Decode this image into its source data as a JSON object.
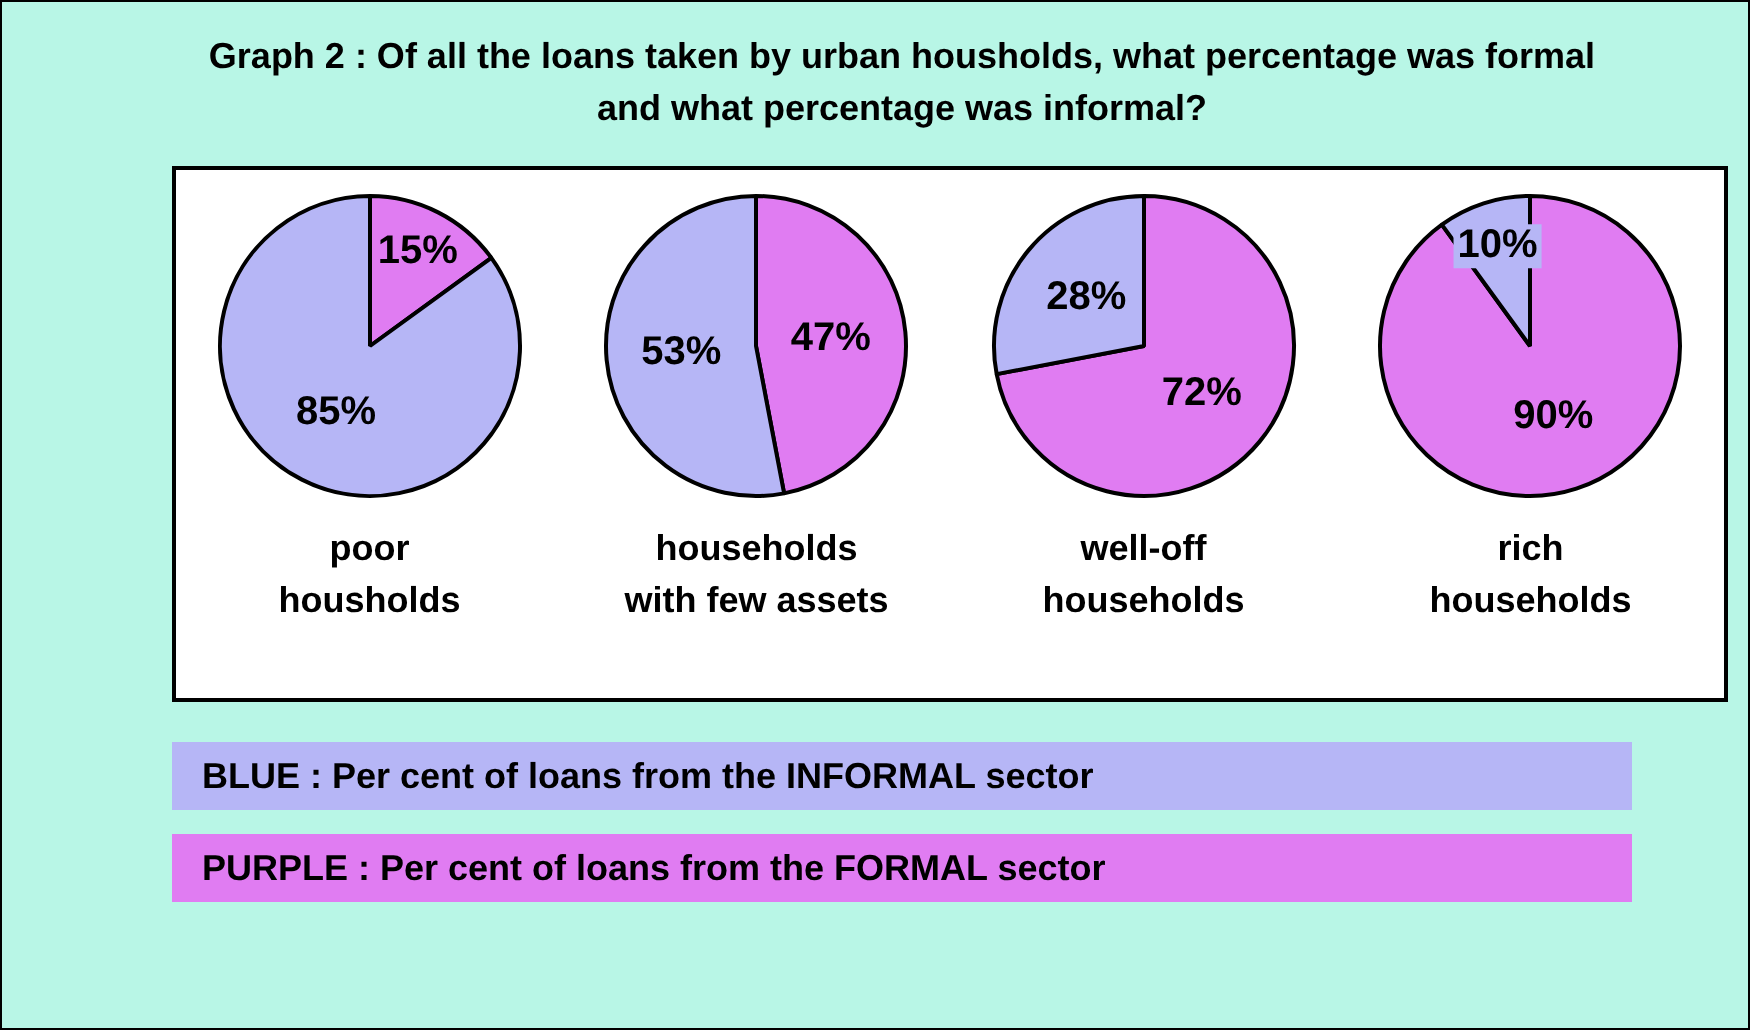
{
  "chart_data": [
    {
      "type": "other",
      "title": "Graph 2 : Of all the loans taken by urban housholds, what percentage was formal and what percentage was informal?",
      "annotations": [
        "BLUE : Per cent of loans from the INFORMAL sector",
        "PURPLE : Per cent of loans from the FORMAL sector"
      ]
    },
    {
      "type": "pie",
      "title": "poor\nhousholds",
      "categories": [
        null,
        null
      ],
      "values": [
        15,
        85
      ],
      "colors": [
        "#e07cf2",
        "#b6b6f6"
      ],
      "value_labels": [
        "15%",
        "85%"
      ],
      "legend": false
    },
    {
      "type": "pie",
      "title": "households\nwith few assets",
      "categories": [
        null,
        null
      ],
      "values": [
        47,
        53
      ],
      "colors": [
        "#e07cf2",
        "#b6b6f6"
      ],
      "value_labels": [
        "47%",
        "53%"
      ],
      "legend": false
    },
    {
      "type": "pie",
      "title": "well-off\nhouseholds",
      "categories": [
        null,
        null
      ],
      "values": [
        72,
        28
      ],
      "colors": [
        "#e07cf2",
        "#b6b6f6"
      ],
      "value_labels": [
        "72%",
        "28%"
      ],
      "legend": false
    },
    {
      "type": "pie",
      "title": "rich\nhouseholds",
      "categories": [
        null,
        null
      ],
      "values": [
        90,
        10
      ],
      "colors": [
        "#e07cf2",
        "#b6b6f6"
      ],
      "value_labels": [
        "90%",
        "10%"
      ],
      "legend": false
    }
  ]
}
